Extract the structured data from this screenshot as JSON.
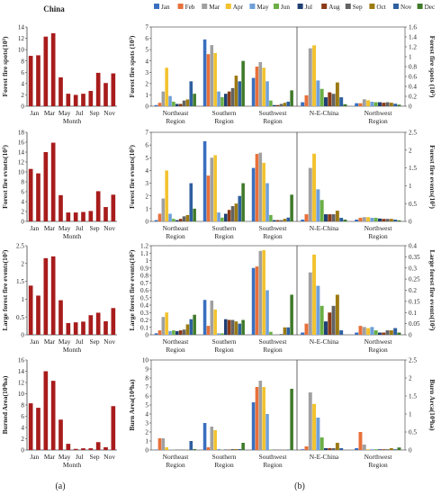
{
  "figure": {
    "panel_a_label": "(a)",
    "panel_b_label": "(b)",
    "china_title": "China",
    "month_axis_title": "Month",
    "colors": {
      "china_bar": "#a81c1c",
      "months": [
        "#3a6fbf",
        "#e8703a",
        "#a0a0a0",
        "#f2c22e",
        "#6e9fd8",
        "#6aaf45",
        "#1f3f73",
        "#8a3a16",
        "#636363",
        "#9c7a12",
        "#2e5f9e",
        "#3f7a2a"
      ]
    }
  },
  "legend": {
    "months": [
      "Jan",
      "Feb",
      "Mar",
      "Apr",
      "May",
      "Jun",
      "Jul",
      "Aug",
      "Sep",
      "Oct",
      "Nov",
      "Dec"
    ]
  },
  "chart_data": [
    {
      "type": "bar",
      "panel": "a",
      "row": 1,
      "categories": [
        "Jan",
        "Feb",
        "Mar",
        "Apr",
        "May",
        "Jun",
        "Jul",
        "Aug",
        "Sep",
        "Oct",
        "Nov",
        "Dec"
      ],
      "xtick_labels": [
        "Jan",
        "Mar",
        "May",
        "Jul",
        "Sep",
        "Nov"
      ],
      "values": [
        8.9,
        9.0,
        12.3,
        12.9,
        5.1,
        2.2,
        2.0,
        2.2,
        2.7,
        5.9,
        4.1,
        5.8
      ],
      "ylabel": "Forest fire spots(10³)",
      "ylim": [
        0,
        14
      ],
      "yticks": [
        0,
        2,
        4,
        6,
        8,
        10,
        12,
        14
      ],
      "xlabel": "Month"
    },
    {
      "type": "bar",
      "panel": "a",
      "row": 2,
      "categories": [
        "Jan",
        "Feb",
        "Mar",
        "Apr",
        "May",
        "Jun",
        "Jul",
        "Aug",
        "Sep",
        "Oct",
        "Nov",
        "Dec"
      ],
      "xtick_labels": [
        "Jan",
        "Mar",
        "May",
        "Jul",
        "Sep",
        "Nov"
      ],
      "values": [
        10.6,
        9.7,
        14.0,
        15.9,
        5.3,
        1.8,
        1.8,
        1.9,
        2.1,
        6.1,
        2.9,
        5.4
      ],
      "ylabel": "Forest fire evnets(10³)",
      "ylim": [
        0,
        18
      ],
      "yticks": [
        0,
        2,
        4,
        6,
        8,
        10,
        12,
        14,
        16,
        18
      ],
      "xlabel": "Month"
    },
    {
      "type": "bar",
      "panel": "a",
      "row": 3,
      "categories": [
        "Jan",
        "Feb",
        "Mar",
        "Apr",
        "May",
        "Jun",
        "Jul",
        "Aug",
        "Sep",
        "Oct",
        "Nov",
        "Dec"
      ],
      "xtick_labels": [
        "Jan",
        "Mar",
        "May",
        "Jul",
        "Sep",
        "Nov"
      ],
      "values": [
        1.38,
        1.1,
        2.15,
        2.2,
        0.97,
        0.33,
        0.35,
        0.37,
        0.55,
        0.62,
        0.38,
        0.75
      ],
      "ylabel": "Large forest fire events(10²)",
      "ylim": [
        0,
        2.5
      ],
      "yticks": [
        0,
        0.5,
        1,
        1.5,
        2,
        2.5
      ],
      "xlabel": "Month"
    },
    {
      "type": "bar",
      "panel": "a",
      "row": 4,
      "categories": [
        "Jan",
        "Feb",
        "Mar",
        "Apr",
        "May",
        "Jun",
        "Jul",
        "Aug",
        "Sep",
        "Oct",
        "Nov",
        "Dec"
      ],
      "xtick_labels": [
        "Jan",
        "Mar",
        "May",
        "Jul",
        "Sep",
        "Nov"
      ],
      "values": [
        8.3,
        7.5,
        14.0,
        12.3,
        5.4,
        1.1,
        0.2,
        0.3,
        0.3,
        1.4,
        0.5,
        7.8
      ],
      "ylabel": "Burned Area(10⁴ha)",
      "ylim": [
        0,
        16
      ],
      "yticks": [
        0,
        2,
        4,
        6,
        8,
        10,
        12,
        14,
        16
      ],
      "xlabel": "Month"
    },
    {
      "type": "bar",
      "panel": "b",
      "row": 1,
      "side": "left",
      "categories": [
        "Northeast Region",
        "Southern Region",
        "Southwest Region"
      ],
      "xtick_labels": [
        [
          "Northeast",
          "Region"
        ],
        [
          "Southern",
          "Region"
        ],
        [
          "Southwest",
          "Region"
        ]
      ],
      "series_by_month": [
        [
          0.1,
          0.3,
          1.3,
          3.4,
          0.9,
          0.4,
          0.2,
          0.2,
          0.5,
          0.6,
          2.2,
          1.1
        ],
        [
          5.9,
          4.6,
          5.4,
          4.7,
          1.3,
          0.8,
          1.1,
          1.3,
          1.6,
          2.7,
          2.2,
          4.0
        ],
        [
          2.5,
          3.5,
          3.9,
          3.4,
          2.2,
          0.5,
          0.1,
          0.1,
          0.2,
          0.3,
          0.4,
          1.4
        ]
      ],
      "ylabel": "Forest fire spots (10³)",
      "ylim": [
        0,
        7
      ],
      "yticks": [
        0,
        1,
        2,
        3,
        4,
        5,
        6,
        7
      ]
    },
    {
      "type": "bar",
      "panel": "b",
      "row": 1,
      "side": "right",
      "categories": [
        "N-E-China",
        "Northwest Region"
      ],
      "xtick_labels": [
        [
          "N-E-China"
        ],
        [
          "Northwest",
          "Region"
        ]
      ],
      "series_by_month": [
        [
          0.08,
          0.22,
          1.17,
          1.23,
          0.52,
          0.35,
          0.18,
          0.28,
          0.25,
          0.48,
          0.18,
          0.04
        ],
        [
          0.06,
          0.06,
          0.14,
          0.12,
          0.09,
          0.08,
          0.08,
          0.07,
          0.08,
          0.07,
          0.05,
          0.03
        ]
      ],
      "ylabel": "Forest fire spots (10³)",
      "ylim": [
        0,
        1.6
      ],
      "yticks": [
        0,
        0.2,
        0.4,
        0.6,
        0.8,
        1,
        1.2,
        1.4,
        1.6
      ]
    },
    {
      "type": "bar",
      "panel": "b",
      "row": 2,
      "side": "left",
      "categories": [
        "Northeast Region",
        "Southern Region",
        "Southwest Region"
      ],
      "xtick_labels": [
        [
          "Northeast",
          "Region"
        ],
        [
          "Southern",
          "Region"
        ],
        [
          "Southwest",
          "Region"
        ]
      ],
      "series_by_month": [
        [
          0.1,
          0.6,
          1.8,
          4.0,
          0.6,
          0.2,
          0.1,
          0.2,
          0.4,
          0.5,
          3.0,
          1.0
        ],
        [
          6.3,
          3.6,
          5.0,
          5.2,
          0.7,
          0.3,
          0.6,
          0.9,
          1.2,
          1.4,
          2.0,
          3.0
        ],
        [
          4.2,
          5.3,
          5.4,
          4.6,
          3.0,
          0.5,
          0.1,
          0.1,
          0.1,
          0.2,
          0.3,
          2.1
        ]
      ],
      "ylabel": "Forest fire evnets(10³)",
      "ylim": [
        0,
        7
      ],
      "yticks": [
        0,
        1,
        2,
        3,
        4,
        5,
        6,
        7
      ]
    },
    {
      "type": "bar",
      "panel": "b",
      "row": 2,
      "side": "right",
      "categories": [
        "N-E-China",
        "Northwest Region"
      ],
      "xtick_labels": [
        [
          "N-E-China"
        ],
        [
          "Northwest",
          "Region"
        ]
      ],
      "series_by_month": [
        [
          0.05,
          0.2,
          1.5,
          1.9,
          0.9,
          0.6,
          0.2,
          0.2,
          0.2,
          0.3,
          0.1,
          0.05
        ],
        [
          0.05,
          0.1,
          0.12,
          0.12,
          0.1,
          0.1,
          0.08,
          0.07,
          0.07,
          0.07,
          0.05,
          0.03
        ]
      ],
      "ylabel": "Forest fire events(10³)",
      "ylim": [
        0,
        2.5
      ],
      "yticks": [
        0,
        0.5,
        1,
        1.5,
        2,
        2.5
      ]
    },
    {
      "type": "bar",
      "panel": "b",
      "row": 3,
      "side": "left",
      "categories": [
        "Northeast Region",
        "Southern Region",
        "Southwest Region"
      ],
      "xtick_labels": [
        [
          "Northeast",
          "Region"
        ],
        [
          "Southern",
          "Region"
        ],
        [
          "Southwest",
          "Region"
        ]
      ],
      "series_by_month": [
        [
          0.02,
          0.06,
          0.24,
          0.3,
          0.05,
          0.06,
          0.05,
          0.06,
          0.07,
          0.14,
          0.21,
          0.27
        ],
        [
          0.47,
          0.12,
          0.46,
          0.34,
          0.02,
          0.02,
          0.21,
          0.2,
          0.2,
          0.18,
          0.15,
          0.2
        ],
        [
          0.9,
          0.92,
          1.13,
          1.14,
          0.6,
          0.04,
          0.0,
          0.0,
          0.01,
          0.1,
          0.1,
          0.54
        ]
      ],
      "ylabel": "Large forest fire events(10²)",
      "ylim": [
        0,
        1.2
      ],
      "yticks": [
        0,
        0.1,
        0.2,
        0.3,
        0.4,
        0.5,
        0.6,
        0.7,
        0.8,
        0.9,
        1,
        1.1,
        1.2
      ]
    },
    {
      "type": "bar",
      "panel": "b",
      "row": 3,
      "side": "right",
      "categories": [
        "N-E-China",
        "Northwest Region"
      ],
      "xtick_labels": [
        [
          "N-E-China"
        ],
        [
          "Northwest",
          "Region"
        ]
      ],
      "series_by_month": [
        [
          0.01,
          0.05,
          0.28,
          0.36,
          0.22,
          0.13,
          0.06,
          0.1,
          0.13,
          0.18,
          0.02,
          0.0
        ],
        [
          0.01,
          0.04,
          0.035,
          0.03,
          0.035,
          0.02,
          0.01,
          0.01,
          0.02,
          0.02,
          0.03,
          0.01
        ]
      ],
      "ylabel": "Large forest fire events(10²)",
      "ylim": [
        0,
        0.4
      ],
      "yticks": [
        0,
        0.05,
        0.1,
        0.15,
        0.2,
        0.25,
        0.3,
        0.35,
        0.4
      ]
    },
    {
      "type": "bar",
      "panel": "b",
      "row": 4,
      "side": "left",
      "categories": [
        "Northeast Region",
        "Southern Region",
        "Southwest Region"
      ],
      "xtick_labels": [
        [
          "Northeast",
          "Region"
        ],
        [
          "Southern",
          "Region"
        ],
        [
          "Southwest",
          "Region"
        ]
      ],
      "series_by_month": [
        [
          0.05,
          1.3,
          1.3,
          0.3,
          0.05,
          0.02,
          0.02,
          0.02,
          0.02,
          0.02,
          1.0,
          0.1
        ],
        [
          3.0,
          0.3,
          2.6,
          2.2,
          0.1,
          0.02,
          0.05,
          0.05,
          0.1,
          0.1,
          0.1,
          0.8
        ],
        [
          5.3,
          7.0,
          7.7,
          7.0,
          4.0,
          0.05,
          0.02,
          0.02,
          0.02,
          0.02,
          0.05,
          6.8
        ]
      ],
      "ylabel": "Burn Area(10⁴ha)",
      "ylim": [
        0,
        10
      ],
      "yticks": [
        0,
        1,
        2,
        3,
        4,
        5,
        6,
        7,
        8,
        9,
        10
      ]
    },
    {
      "type": "bar",
      "panel": "b",
      "row": 4,
      "side": "right",
      "categories": [
        "N-E-China",
        "Northwest Region"
      ],
      "xtick_labels": [
        [
          "N-E-China"
        ],
        [
          "Northwest",
          "Region"
        ]
      ],
      "series_by_month": [
        [
          0.02,
          0.1,
          1.6,
          1.28,
          0.9,
          0.35,
          0.05,
          0.05,
          0.05,
          0.2,
          0.05,
          0.0
        ],
        [
          0.05,
          0.5,
          0.15,
          0.02,
          0.02,
          0.02,
          0.02,
          0.02,
          0.02,
          0.05,
          0.02,
          0.07
        ]
      ],
      "ylabel": "Burn Arca(10⁴ha)",
      "ylim": [
        0,
        2.5
      ],
      "yticks": [
        0,
        0.5,
        1,
        1.5,
        2,
        2.5
      ]
    }
  ]
}
